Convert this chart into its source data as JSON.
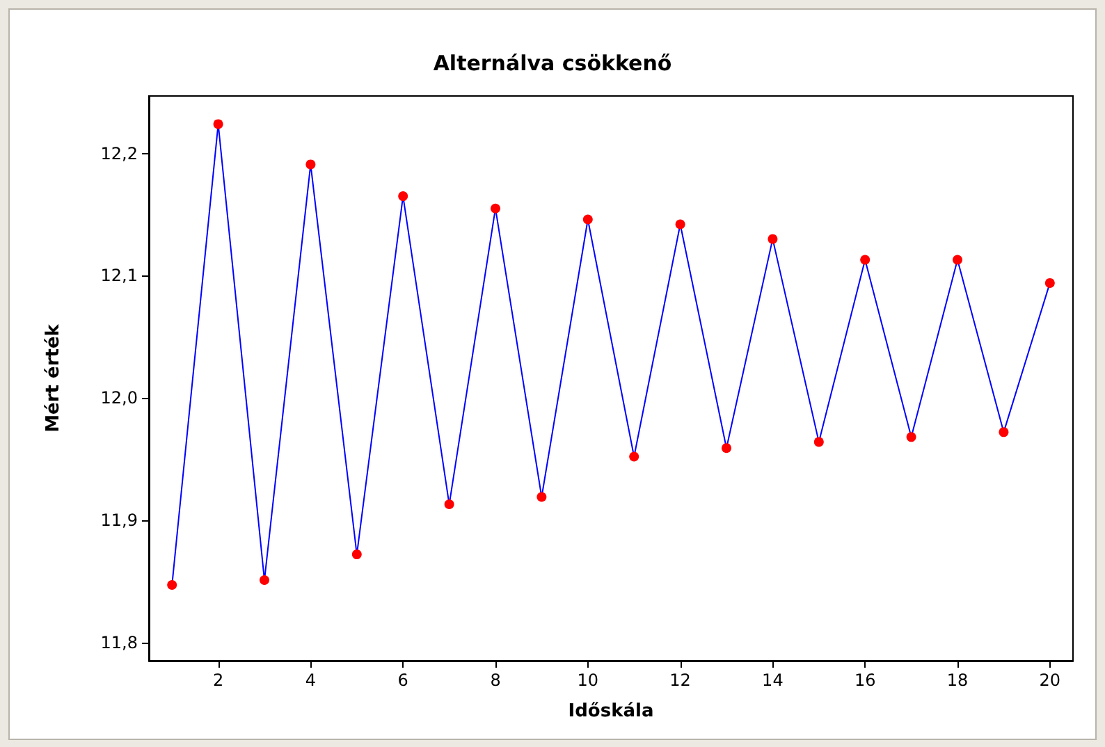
{
  "chart_data": {
    "type": "line",
    "title": "Alternálva csökkenő",
    "xlabel": "Időskála",
    "ylabel": "Mért érték",
    "x": [
      1,
      2,
      3,
      4,
      5,
      6,
      7,
      8,
      9,
      10,
      11,
      12,
      13,
      14,
      15,
      16,
      17,
      18,
      19,
      20
    ],
    "series": [
      {
        "color": "#0000ff",
        "colors": [
          "#ff0000",
          "#ff0000",
          "#ff0000",
          "#ff0000",
          "#ff0000",
          "#ff0000",
          "#ff0000",
          "#ff0000",
          "#ff0000",
          "#ff0000",
          "#ff0000",
          "#ff0000",
          "#ff0000",
          "#ff0000",
          "#ff0000",
          "#ff0000",
          "#ff0000",
          "#ff0000",
          "#ff0000",
          "#ff0000"
        ],
        "values": [
          11.847,
          12.224,
          11.851,
          12.191,
          11.872,
          12.165,
          11.913,
          12.155,
          11.919,
          12.146,
          11.952,
          12.142,
          11.959,
          12.13,
          11.964,
          12.113,
          11.968,
          12.113,
          11.972,
          12.094
        ]
      }
    ],
    "marker": "circle",
    "line_style": "solid",
    "xlim": [
      0.5,
      20.5
    ],
    "xticks": [
      2,
      4,
      6,
      8,
      10,
      12,
      14,
      16,
      18,
      20
    ],
    "ylim": [
      11.785,
      12.247
    ],
    "yticks": [
      {
        "value": 11.8,
        "label": "11,8"
      },
      {
        "value": 11.9,
        "label": "11,9"
      },
      {
        "value": 12.0,
        "label": "12,0"
      },
      {
        "value": 12.1,
        "label": "12,1"
      },
      {
        "value": 12.2,
        "label": "12,2"
      }
    ]
  }
}
